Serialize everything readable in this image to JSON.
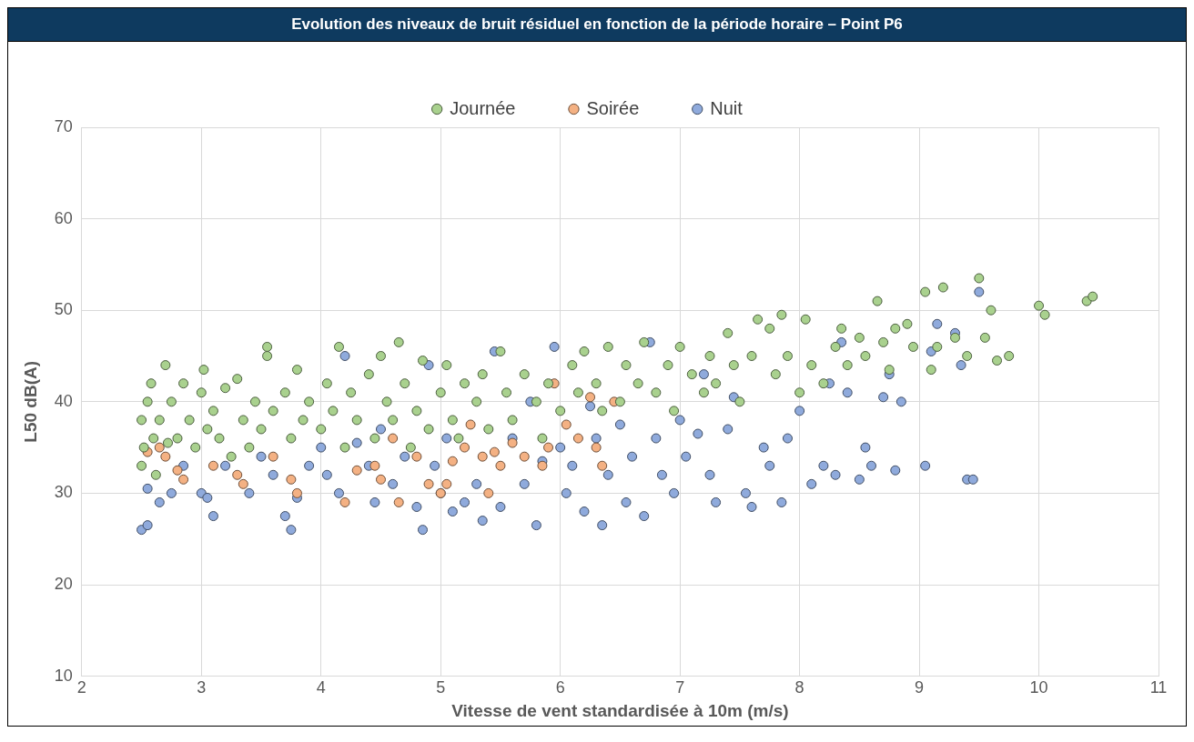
{
  "chart_data": {
    "type": "scatter",
    "title": "Evolution des niveaux de bruit résiduel en fonction de la période horaire – Point P6",
    "xlabel": "Vitesse de vent standardisée à 10m (m/s)",
    "ylabel": "L50 dB(A)",
    "xlim": [
      2,
      11
    ],
    "xticks": [
      2,
      3,
      4,
      5,
      6,
      7,
      8,
      9,
      10,
      11
    ],
    "ylim": [
      10,
      70
    ],
    "yticks": [
      10,
      20,
      30,
      40,
      50,
      60,
      70
    ],
    "grid": true,
    "legend": "top",
    "marker": "circle",
    "series": [
      {
        "name": "Journée",
        "color": "#a9d18e",
        "x": [
          2.5,
          2.5,
          2.52,
          2.55,
          2.58,
          2.6,
          2.62,
          2.65,
          2.7,
          2.72,
          2.75,
          2.8,
          2.85,
          2.9,
          2.95,
          3.0,
          3.02,
          3.05,
          3.1,
          3.15,
          3.2,
          3.25,
          3.3,
          3.35,
          3.4,
          3.45,
          3.5,
          3.55,
          3.55,
          3.6,
          3.7,
          3.75,
          3.8,
          3.85,
          3.9,
          4.0,
          4.05,
          4.1,
          4.15,
          4.2,
          4.25,
          4.3,
          4.4,
          4.45,
          4.5,
          4.55,
          4.6,
          4.65,
          4.7,
          4.75,
          4.8,
          4.85,
          4.9,
          5.0,
          5.05,
          5.1,
          5.15,
          5.2,
          5.3,
          5.35,
          5.4,
          5.5,
          5.55,
          5.6,
          5.7,
          5.8,
          5.85,
          5.9,
          6.0,
          6.1,
          6.15,
          6.2,
          6.3,
          6.35,
          6.4,
          6.5,
          6.55,
          6.65,
          6.7,
          6.8,
          6.9,
          6.95,
          7.0,
          7.1,
          7.2,
          7.25,
          7.3,
          7.4,
          7.45,
          7.5,
          7.6,
          7.65,
          7.75,
          7.8,
          7.85,
          7.9,
          8.0,
          8.05,
          8.1,
          8.2,
          8.3,
          8.35,
          8.4,
          8.5,
          8.55,
          8.65,
          8.7,
          8.75,
          8.8,
          8.9,
          8.95,
          9.05,
          9.1,
          9.15,
          9.2,
          9.3,
          9.4,
          9.5,
          9.55,
          9.6,
          9.65,
          9.75,
          10.0,
          10.05,
          10.4,
          10.45
        ],
        "values": [
          38,
          33,
          35,
          40,
          42,
          36,
          32,
          38,
          44,
          35.5,
          40,
          36,
          42,
          38,
          35,
          41,
          43.5,
          37,
          39,
          36,
          41.5,
          34,
          42.5,
          38,
          35,
          40,
          37,
          46,
          45,
          39,
          41,
          36,
          43.5,
          38,
          40,
          37,
          42,
          39,
          46,
          35,
          41,
          38,
          43,
          36,
          45,
          40,
          38,
          46.5,
          42,
          35,
          39,
          44.5,
          37,
          41,
          44,
          38,
          36,
          42,
          40,
          43,
          37,
          45.5,
          41,
          38,
          43,
          40,
          36,
          42,
          39,
          44,
          41,
          45.5,
          42,
          39,
          46,
          40,
          44,
          42,
          46.5,
          41,
          44,
          39,
          46,
          43,
          41,
          45,
          42,
          47.5,
          44,
          40,
          45,
          49,
          48,
          43,
          49.5,
          45,
          41,
          49,
          44,
          42,
          46,
          48,
          44,
          47,
          45,
          51,
          46.5,
          43.5,
          48,
          48.5,
          46,
          52,
          43.5,
          46,
          52.5,
          47,
          45,
          53.5,
          47,
          50,
          44.5,
          45,
          50.5,
          49.5,
          51,
          51.5
        ]
      },
      {
        "name": "Soirée",
        "color": "#f4b183",
        "x": [
          2.55,
          2.65,
          2.7,
          2.8,
          2.85,
          3.1,
          3.3,
          3.35,
          3.6,
          3.75,
          3.8,
          4.2,
          4.3,
          4.45,
          4.5,
          4.6,
          4.65,
          4.8,
          4.9,
          5.0,
          5.05,
          5.1,
          5.2,
          5.25,
          5.35,
          5.4,
          5.45,
          5.5,
          5.6,
          5.7,
          5.85,
          5.9,
          5.95,
          6.05,
          6.15,
          6.25,
          6.3,
          6.35,
          6.45
        ],
        "values": [
          34.5,
          35,
          34,
          32.5,
          31.5,
          33,
          32,
          31,
          34,
          31.5,
          30,
          29,
          32.5,
          33,
          31.5,
          36,
          29,
          34,
          31,
          30,
          31,
          33.5,
          35,
          37.5,
          34,
          30,
          34.5,
          33,
          35.5,
          34,
          33,
          35,
          42,
          37.5,
          36,
          40.5,
          35,
          33,
          40
        ]
      },
      {
        "name": "Nuit",
        "color": "#8faadc",
        "x": [
          2.5,
          2.55,
          2.55,
          2.65,
          2.75,
          2.85,
          3.0,
          3.05,
          3.1,
          3.2,
          3.4,
          3.5,
          3.6,
          3.7,
          3.75,
          3.8,
          3.9,
          4.0,
          4.05,
          4.15,
          4.2,
          4.3,
          4.4,
          4.45,
          4.5,
          4.6,
          4.7,
          4.8,
          4.85,
          4.9,
          4.95,
          5.0,
          5.05,
          5.1,
          5.2,
          5.3,
          5.35,
          5.45,
          5.5,
          5.6,
          5.7,
          5.75,
          5.8,
          5.85,
          5.95,
          6.0,
          6.05,
          6.1,
          6.2,
          6.25,
          6.3,
          6.35,
          6.4,
          6.5,
          6.55,
          6.6,
          6.7,
          6.75,
          6.8,
          6.85,
          6.95,
          7.0,
          7.05,
          7.15,
          7.2,
          7.25,
          7.3,
          7.4,
          7.45,
          7.55,
          7.6,
          7.7,
          7.75,
          7.85,
          7.9,
          8.0,
          8.1,
          8.2,
          8.25,
          8.3,
          8.35,
          8.4,
          8.5,
          8.55,
          8.6,
          8.7,
          8.75,
          8.8,
          8.85,
          9.05,
          9.1,
          9.15,
          9.3,
          9.35,
          9.4,
          9.45,
          9.5
        ],
        "values": [
          26,
          26.5,
          30.5,
          29,
          30,
          33,
          30,
          29.5,
          27.5,
          33,
          30,
          34,
          32,
          27.5,
          26,
          29.5,
          33,
          35,
          32,
          30,
          45,
          35.5,
          33,
          29,
          37,
          31,
          34,
          28.5,
          26,
          44,
          33,
          30,
          36,
          28,
          29,
          31,
          27,
          45.5,
          28.5,
          36,
          31,
          40,
          26.5,
          33.5,
          46,
          35,
          30,
          33,
          28,
          39.5,
          36,
          26.5,
          32,
          37.5,
          29,
          34,
          27.5,
          46.5,
          36,
          32,
          30,
          38,
          34,
          36.5,
          43,
          32,
          29,
          37,
          40.5,
          30,
          28.5,
          35,
          33,
          29,
          36,
          39,
          31,
          33,
          42,
          32,
          46.5,
          41,
          31.5,
          35,
          33,
          40.5,
          43,
          32.5,
          40,
          33,
          45.5,
          48.5,
          47.5,
          44,
          31.5,
          31.5,
          52
        ]
      }
    ]
  }
}
